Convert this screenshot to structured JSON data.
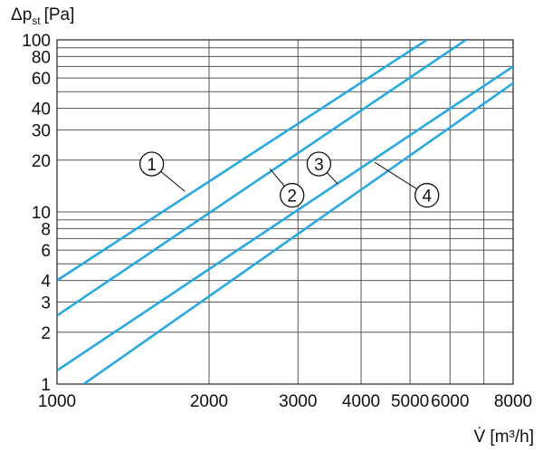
{
  "chart_data": {
    "type": "line",
    "title": "",
    "xlabel": "V̇ [m³/h]",
    "ylabel": "Δp",
    "ylabel_sub": "st",
    "ylabel_unit": "[Pa]",
    "xscale": "log",
    "yscale": "log",
    "xlim": [
      1000,
      8000
    ],
    "ylim": [
      1,
      100
    ],
    "grid": true,
    "x_ticks": [
      1000,
      2000,
      3000,
      4000,
      5000,
      6000,
      8000
    ],
    "x_tick_labels": [
      "1000",
      "2000",
      "3000",
      "4000",
      "5000",
      "6000",
      "8000"
    ],
    "x_grid": [
      1000,
      2000,
      3000,
      4000,
      5000,
      6000,
      7000,
      8000
    ],
    "y_ticks": [
      1,
      2,
      3,
      4,
      6,
      8,
      10,
      20,
      30,
      40,
      60,
      80,
      100
    ],
    "y_tick_labels": [
      "1",
      "2",
      "3",
      "4",
      "6",
      "8",
      "10",
      "20",
      "30",
      "40",
      "60",
      "80",
      "100"
    ],
    "y_grid": [
      1,
      2,
      3,
      4,
      5,
      6,
      7,
      8,
      9,
      10,
      20,
      30,
      40,
      50,
      60,
      70,
      80,
      90,
      100
    ],
    "line_color": "#29a8e0",
    "grid_color": "#555555",
    "series": [
      {
        "name": "1",
        "x": [
          1000,
          5400
        ],
        "y": [
          4.0,
          100
        ]
      },
      {
        "name": "2",
        "x": [
          1000,
          6450
        ],
        "y": [
          2.5,
          100
        ]
      },
      {
        "name": "3",
        "x": [
          1000,
          8000
        ],
        "y": [
          1.2,
          70
        ]
      },
      {
        "name": "4",
        "x": [
          1130,
          8000
        ],
        "y": [
          1.0,
          56
        ]
      }
    ],
    "curve_labels": [
      {
        "text": "1",
        "x": 1540,
        "y": 19.0,
        "lead_to": [
          1790,
          13.2
        ]
      },
      {
        "text": "2",
        "x": 2920,
        "y": 12.5,
        "lead_to": [
          2640,
          17.8
        ]
      },
      {
        "text": "3",
        "x": 3300,
        "y": 19.0,
        "lead_to": [
          3600,
          14.5
        ]
      },
      {
        "text": "4",
        "x": 5400,
        "y": 12.5,
        "lead_to": [
          4250,
          19.5
        ]
      }
    ]
  }
}
